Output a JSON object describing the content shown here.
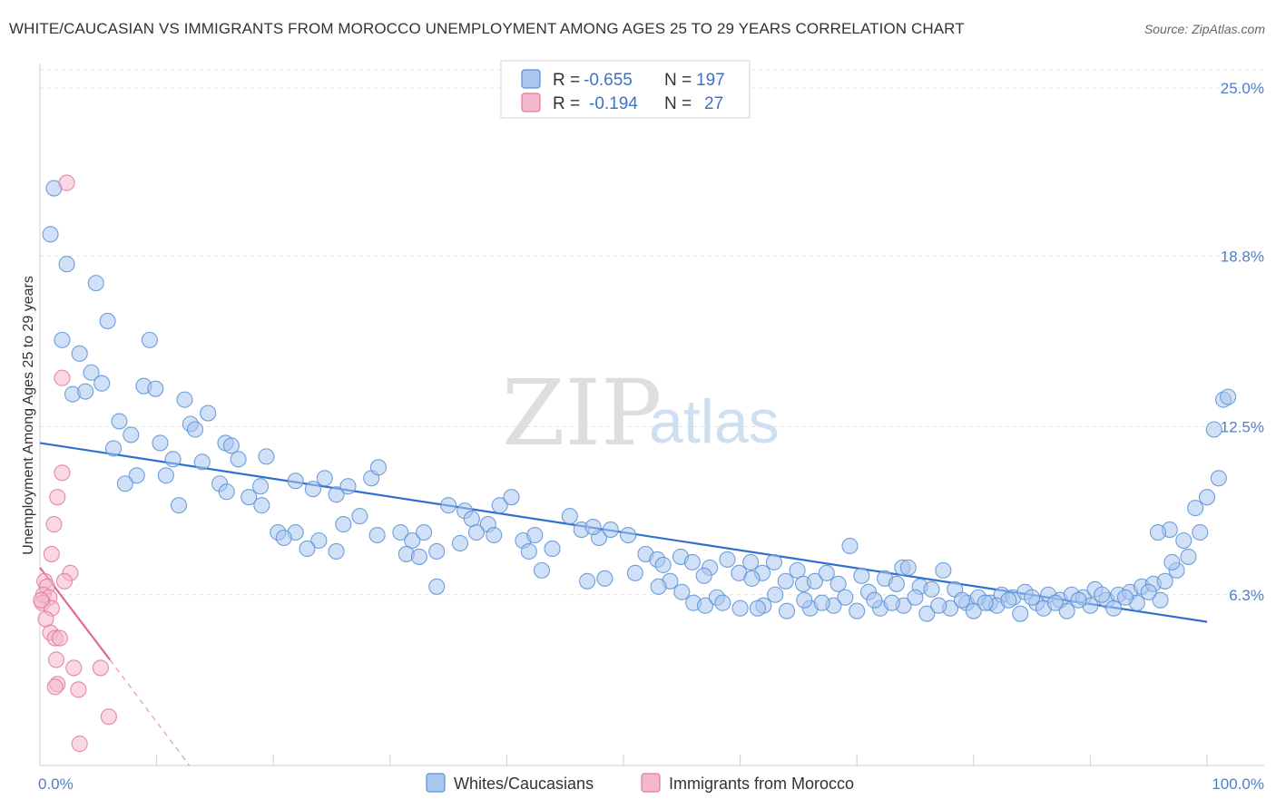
{
  "title": "WHITE/CAUCASIAN VS IMMIGRANTS FROM MOROCCO UNEMPLOYMENT AMONG AGES 25 TO 29 YEARS CORRELATION CHART",
  "source": "Source: ZipAtlas.com",
  "watermark": {
    "zip": "ZIP",
    "atlas": "atlas"
  },
  "legend": {
    "r_label": "R =",
    "n_label": "N =",
    "rows": [
      {
        "r": "-0.655",
        "n": "197"
      },
      {
        "r": "-0.194",
        "n": "27"
      }
    ]
  },
  "bottom_legend": [
    "Whites/Caucasians",
    "Immigrants from Morocco"
  ],
  "colors": {
    "blue": "#5b8fd6",
    "blue_fill": "#a9c6ee",
    "pink": "#e0789a",
    "pink_fill": "#f4b8cc"
  },
  "chart_data": {
    "type": "scatter",
    "xlabel": "",
    "ylabel": "Unemployment Among Ages 25 to 29 years",
    "xlim": [
      0,
      100
    ],
    "ylim": [
      0,
      25
    ],
    "x_tick_labels": [
      "0.0%",
      "100.0%"
    ],
    "y_ticks": [
      6.3,
      12.5,
      18.8,
      25.0
    ],
    "y_tick_labels": [
      "6.3%",
      "12.5%",
      "18.8%",
      "25.0%"
    ],
    "grid": true,
    "legend_position": "top-center",
    "series": [
      {
        "name": "Whites/Caucasians",
        "r": -0.655,
        "n": 197,
        "trend": [
          [
            0,
            11.9
          ],
          [
            100,
            5.3
          ]
        ],
        "points": [
          [
            1.2,
            21.3
          ],
          [
            0.9,
            19.6
          ],
          [
            2.3,
            18.5
          ],
          [
            4.8,
            17.8
          ],
          [
            5.8,
            16.4
          ],
          [
            1.9,
            15.7
          ],
          [
            9.4,
            15.7
          ],
          [
            3.4,
            15.2
          ],
          [
            4.4,
            14.5
          ],
          [
            5.3,
            14.1
          ],
          [
            8.9,
            14.0
          ],
          [
            9.9,
            13.9
          ],
          [
            2.8,
            13.7
          ],
          [
            3.9,
            13.8
          ],
          [
            12.4,
            13.5
          ],
          [
            14.4,
            13.0
          ],
          [
            6.8,
            12.7
          ],
          [
            12.9,
            12.6
          ],
          [
            13.3,
            12.4
          ],
          [
            7.8,
            12.2
          ],
          [
            10.3,
            11.9
          ],
          [
            15.9,
            11.9
          ],
          [
            16.4,
            11.8
          ],
          [
            6.3,
            11.7
          ],
          [
            11.4,
            11.3
          ],
          [
            17.0,
            11.3
          ],
          [
            13.9,
            11.2
          ],
          [
            19.4,
            11.4
          ],
          [
            8.3,
            10.7
          ],
          [
            10.8,
            10.7
          ],
          [
            7.3,
            10.4
          ],
          [
            15.4,
            10.4
          ],
          [
            18.9,
            10.3
          ],
          [
            21.9,
            10.5
          ],
          [
            23.4,
            10.2
          ],
          [
            24.4,
            10.6
          ],
          [
            25.4,
            10.0
          ],
          [
            26.4,
            10.3
          ],
          [
            28.4,
            10.6
          ],
          [
            29.0,
            11.0
          ],
          [
            11.9,
            9.6
          ],
          [
            16.0,
            10.1
          ],
          [
            17.9,
            9.9
          ],
          [
            19.0,
            9.6
          ],
          [
            20.4,
            8.6
          ],
          [
            21.9,
            8.6
          ],
          [
            20.9,
            8.4
          ],
          [
            23.9,
            8.3
          ],
          [
            22.9,
            8.0
          ],
          [
            25.4,
            7.9
          ],
          [
            26.0,
            8.9
          ],
          [
            27.4,
            9.2
          ],
          [
            28.9,
            8.5
          ],
          [
            30.9,
            8.6
          ],
          [
            31.9,
            8.3
          ],
          [
            32.9,
            8.6
          ],
          [
            31.4,
            7.8
          ],
          [
            32.5,
            7.7
          ],
          [
            34.0,
            7.9
          ],
          [
            35.0,
            9.6
          ],
          [
            36.4,
            9.4
          ],
          [
            37.0,
            9.1
          ],
          [
            38.4,
            8.9
          ],
          [
            39.4,
            9.6
          ],
          [
            40.4,
            9.9
          ],
          [
            37.4,
            8.6
          ],
          [
            38.9,
            8.5
          ],
          [
            36.0,
            8.2
          ],
          [
            41.4,
            8.3
          ],
          [
            42.4,
            8.5
          ],
          [
            43.9,
            8.0
          ],
          [
            41.9,
            7.9
          ],
          [
            45.4,
            9.2
          ],
          [
            46.4,
            8.7
          ],
          [
            47.9,
            8.4
          ],
          [
            48.9,
            8.7
          ],
          [
            47.4,
            8.8
          ],
          [
            50.4,
            8.5
          ],
          [
            51.9,
            7.8
          ],
          [
            52.9,
            7.6
          ],
          [
            53.4,
            7.4
          ],
          [
            54.9,
            7.7
          ],
          [
            55.9,
            7.5
          ],
          [
            57.4,
            7.3
          ],
          [
            46.9,
            6.8
          ],
          [
            48.4,
            6.9
          ],
          [
            43.0,
            7.2
          ],
          [
            34.0,
            6.6
          ],
          [
            51.0,
            7.1
          ],
          [
            54.0,
            6.8
          ],
          [
            56.9,
            7.0
          ],
          [
            58.9,
            7.6
          ],
          [
            59.9,
            7.1
          ],
          [
            60.9,
            7.5
          ],
          [
            61.9,
            7.1
          ],
          [
            62.9,
            7.5
          ],
          [
            61.0,
            6.9
          ],
          [
            63.9,
            6.8
          ],
          [
            64.9,
            7.2
          ],
          [
            65.4,
            6.7
          ],
          [
            66.4,
            6.8
          ],
          [
            67.4,
            7.1
          ],
          [
            68.4,
            6.7
          ],
          [
            69.4,
            8.1
          ],
          [
            70.4,
            7.0
          ],
          [
            71.0,
            6.4
          ],
          [
            72.4,
            6.9
          ],
          [
            73.4,
            6.7
          ],
          [
            73.9,
            7.3
          ],
          [
            74.4,
            7.3
          ],
          [
            75.4,
            6.6
          ],
          [
            76.4,
            6.5
          ],
          [
            77.4,
            7.2
          ],
          [
            78.4,
            6.5
          ],
          [
            79.4,
            6.0
          ],
          [
            80.4,
            6.2
          ],
          [
            81.4,
            6.0
          ],
          [
            82.4,
            6.3
          ],
          [
            83.4,
            6.2
          ],
          [
            84.4,
            6.4
          ],
          [
            85.4,
            6.0
          ],
          [
            86.4,
            6.3
          ],
          [
            87.4,
            6.1
          ],
          [
            88.4,
            6.3
          ],
          [
            89.4,
            6.2
          ],
          [
            90.4,
            6.5
          ],
          [
            91.4,
            6.1
          ],
          [
            92.4,
            6.3
          ],
          [
            93.4,
            6.4
          ],
          [
            94.4,
            6.6
          ],
          [
            95.4,
            6.7
          ],
          [
            96.4,
            6.8
          ],
          [
            97.4,
            7.2
          ],
          [
            98.4,
            7.7
          ],
          [
            99.4,
            8.6
          ],
          [
            55.0,
            6.4
          ],
          [
            53.0,
            6.6
          ],
          [
            56.0,
            6.0
          ],
          [
            57.0,
            5.9
          ],
          [
            58.0,
            6.2
          ],
          [
            60.0,
            5.8
          ],
          [
            62.0,
            5.9
          ],
          [
            64.0,
            5.7
          ],
          [
            66.0,
            5.8
          ],
          [
            68.0,
            5.9
          ],
          [
            70.0,
            5.7
          ],
          [
            72.0,
            5.8
          ],
          [
            74.0,
            5.9
          ],
          [
            76.0,
            5.6
          ],
          [
            78.0,
            5.8
          ],
          [
            80.0,
            5.7
          ],
          [
            82.0,
            5.9
          ],
          [
            84.0,
            5.6
          ],
          [
            86.0,
            5.8
          ],
          [
            88.0,
            5.7
          ],
          [
            90.0,
            5.9
          ],
          [
            92.0,
            5.8
          ],
          [
            94.0,
            6.0
          ],
          [
            96.0,
            6.1
          ],
          [
            58.5,
            6.0
          ],
          [
            61.5,
            5.8
          ],
          [
            63.0,
            6.3
          ],
          [
            65.5,
            6.1
          ],
          [
            67.0,
            6.0
          ],
          [
            69.0,
            6.2
          ],
          [
            71.5,
            6.1
          ],
          [
            73.0,
            6.0
          ],
          [
            75.0,
            6.2
          ],
          [
            77.0,
            5.9
          ],
          [
            79.0,
            6.1
          ],
          [
            81.0,
            6.0
          ],
          [
            83.0,
            6.1
          ],
          [
            85.0,
            6.2
          ],
          [
            87.0,
            6.0
          ],
          [
            89.0,
            6.1
          ],
          [
            91.0,
            6.3
          ],
          [
            93.0,
            6.2
          ],
          [
            95.0,
            6.4
          ],
          [
            96.8,
            8.7
          ],
          [
            98.0,
            8.3
          ],
          [
            99.0,
            9.5
          ],
          [
            100.0,
            9.9
          ],
          [
            101.0,
            10.6
          ],
          [
            101.4,
            13.5
          ],
          [
            100.6,
            12.4
          ],
          [
            101.8,
            13.6
          ],
          [
            95.8,
            8.6
          ],
          [
            97.0,
            7.5
          ]
        ]
      },
      {
        "name": "Immigrants from Morocco",
        "r": -0.194,
        "n": 27,
        "trend": [
          [
            0,
            7.3
          ],
          [
            6,
            3.9
          ]
        ],
        "trend_dashed_to": [
          12.8,
          0
        ],
        "points": [
          [
            2.3,
            21.5
          ],
          [
            1.9,
            14.3
          ],
          [
            1.9,
            10.8
          ],
          [
            1.5,
            9.9
          ],
          [
            1.2,
            8.9
          ],
          [
            1.0,
            7.8
          ],
          [
            2.6,
            7.1
          ],
          [
            2.1,
            6.8
          ],
          [
            0.4,
            6.8
          ],
          [
            0.6,
            6.6
          ],
          [
            0.3,
            6.3
          ],
          [
            0.8,
            6.2
          ],
          [
            0.2,
            6.0
          ],
          [
            1.0,
            5.8
          ],
          [
            0.5,
            5.4
          ],
          [
            0.9,
            4.9
          ],
          [
            1.3,
            4.7
          ],
          [
            1.7,
            4.7
          ],
          [
            1.4,
            3.9
          ],
          [
            2.9,
            3.6
          ],
          [
            5.2,
            3.6
          ],
          [
            1.5,
            3.0
          ],
          [
            1.3,
            2.9
          ],
          [
            3.3,
            2.8
          ],
          [
            5.9,
            1.8
          ],
          [
            3.4,
            0.8
          ],
          [
            0.1,
            6.1
          ]
        ]
      }
    ]
  }
}
